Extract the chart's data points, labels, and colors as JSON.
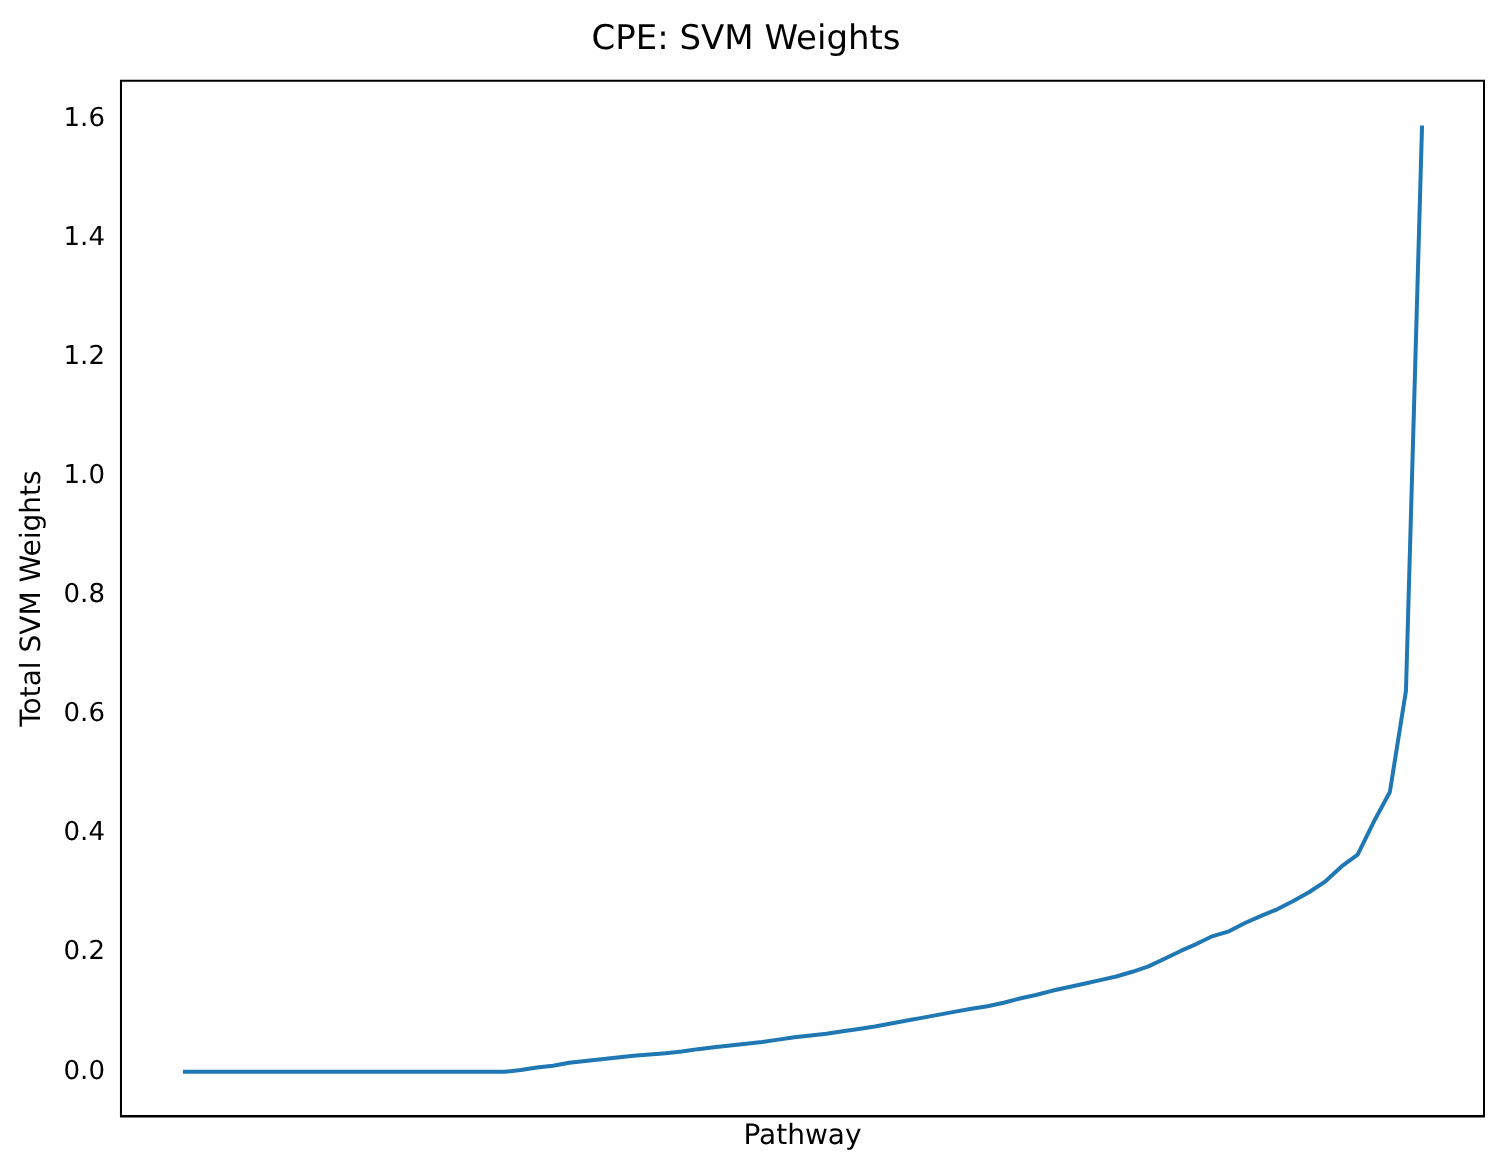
{
  "chart_data": {
    "type": "line",
    "title": "CPE: SVM Weights",
    "xlabel": "Pathway",
    "ylabel": "Total SVM Weights",
    "categories": [
      null,
      null,
      null,
      null,
      null,
      null,
      null,
      null,
      null,
      null,
      null,
      null,
      null,
      null,
      null,
      null,
      null,
      null,
      null,
      null,
      null,
      null,
      null,
      null,
      null,
      null,
      null,
      null,
      null,
      null,
      null,
      null,
      null,
      null,
      null,
      null,
      null,
      null,
      null,
      null,
      null,
      null,
      null,
      null,
      null,
      null,
      null,
      null,
      null,
      null,
      null,
      null,
      null,
      null,
      null,
      null,
      null,
      null,
      null,
      null,
      null,
      null,
      null,
      null,
      null,
      null,
      null,
      null,
      null,
      null,
      null,
      null,
      null,
      null,
      null,
      null,
      null,
      null
    ],
    "series": [
      {
        "color": "#1f77b4",
        "values": [
          0,
          0,
          0,
          0,
          0,
          0,
          0,
          0,
          0,
          0,
          0,
          0,
          0,
          0,
          0,
          0,
          0,
          0,
          0,
          0,
          0,
          0.003,
          0.007,
          0.01,
          0.015,
          0.018,
          0.021,
          0.024,
          0.027,
          0.029,
          0.031,
          0.034,
          0.038,
          0.041,
          0.044,
          0.047,
          0.05,
          0.054,
          0.058,
          0.061,
          0.064,
          0.068,
          0.072,
          0.076,
          0.081,
          0.086,
          0.091,
          0.096,
          0.101,
          0.106,
          0.11,
          0.116,
          0.123,
          0.129,
          0.136,
          0.142,
          0.148,
          0.154,
          0.16,
          0.168,
          0.177,
          0.19,
          0.203,
          0.215,
          0.228,
          0.236,
          0.25,
          0.262,
          0.273,
          0.287,
          0.302,
          0.32,
          0.345,
          0.365,
          0.42,
          0.47,
          0.64,
          1.59
        ]
      }
    ],
    "ylim": [
      -0.075,
      1.665
    ],
    "yticks": [
      {
        "value": 0,
        "label": "0.0"
      },
      0.2,
      0.4,
      0.6,
      0.8,
      {
        "value": 1,
        "label": "1.0"
      },
      1.2,
      1.4,
      1.6
    ],
    "tick_labels": "y",
    "grid": false,
    "legend": false,
    "marker": "none",
    "line_style": "solid"
  }
}
